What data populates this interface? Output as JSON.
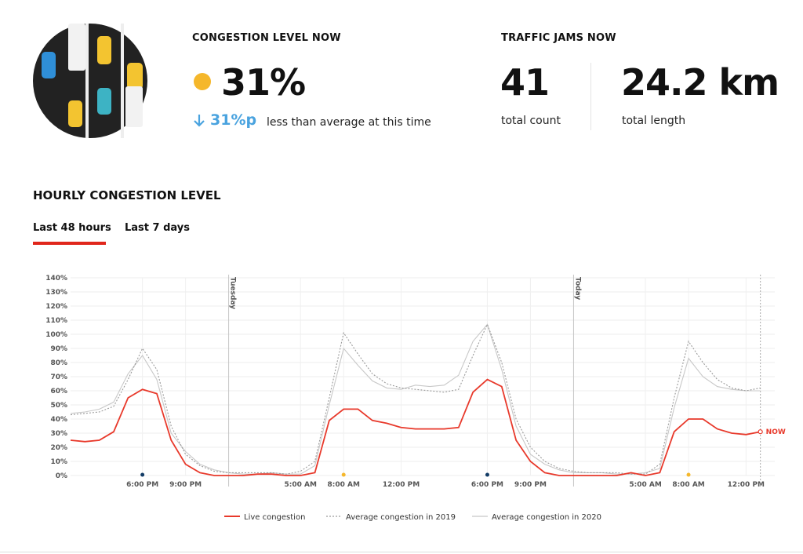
{
  "stats": {
    "congestion_title": "CONGESTION LEVEL NOW",
    "congestion_value": "31%",
    "congestion_delta": "31%p",
    "congestion_delta_text": "less than average at this time",
    "jams_title": "TRAFFIC JAMS NOW",
    "jams_count": "41",
    "jams_count_label": "total count",
    "jams_length": "24.2 km",
    "jams_length_label": "total length"
  },
  "section_title": "HOURLY CONGESTION LEVEL",
  "tabs": [
    "Last 48 hours",
    "Last 7 days"
  ],
  "chart_data": {
    "type": "line",
    "x": [
      0,
      1,
      2,
      3,
      4,
      5,
      6,
      7,
      8,
      9,
      10,
      11,
      12,
      13,
      14,
      15,
      16,
      17,
      18,
      19,
      20,
      21,
      22,
      23,
      24,
      25,
      26,
      27,
      28,
      29,
      30,
      31,
      32,
      33,
      34,
      35,
      36,
      37,
      38,
      39,
      40,
      41,
      42,
      43,
      44,
      45,
      46,
      47,
      48
    ],
    "xlim": [
      0,
      49
    ],
    "xticks": [
      {
        "value": 5,
        "label": "6:00 PM"
      },
      {
        "value": 8,
        "label": "9:00 PM"
      },
      {
        "value": 16,
        "label": "5:00 AM"
      },
      {
        "value": 19,
        "label": "8:00 AM"
      },
      {
        "value": 23,
        "label": "12:00 PM"
      },
      {
        "value": 29,
        "label": "6:00 PM"
      },
      {
        "value": 32,
        "label": "9:00 PM"
      },
      {
        "value": 40,
        "label": "5:00 AM"
      },
      {
        "value": 43,
        "label": "8:00 AM"
      },
      {
        "value": 47,
        "label": "12:00 PM"
      }
    ],
    "ylim": [
      0,
      140
    ],
    "yticks": [
      {
        "value": 0,
        "label": "0%"
      },
      {
        "value": 10,
        "label": "10%"
      },
      {
        "value": 20,
        "label": "20%"
      },
      {
        "value": 30,
        "label": "30%"
      },
      {
        "value": 40,
        "label": "40%"
      },
      {
        "value": 50,
        "label": "50%"
      },
      {
        "value": 60,
        "label": "60%"
      },
      {
        "value": 70,
        "label": "70%"
      },
      {
        "value": 80,
        "label": "80%"
      },
      {
        "value": 90,
        "label": "90%"
      },
      {
        "value": 100,
        "label": "100%"
      },
      {
        "value": 110,
        "label": "110%"
      },
      {
        "value": 120,
        "label": "120%"
      },
      {
        "value": 130,
        "label": "130%"
      },
      {
        "value": 140,
        "label": "140%"
      }
    ],
    "grid": true,
    "series": [
      {
        "name": "Live congestion",
        "color": "#e8392b",
        "style": "solid",
        "values": [
          25,
          24,
          25,
          31,
          55,
          61,
          58,
          25,
          8,
          2,
          0,
          0,
          0,
          1,
          1,
          0,
          0,
          2,
          39,
          47,
          47,
          39,
          37,
          34,
          33,
          33,
          33,
          34,
          59,
          68,
          63,
          25,
          10,
          2,
          0,
          0,
          0,
          0,
          0,
          2,
          0,
          2,
          31,
          40,
          40,
          33,
          30,
          29,
          31
        ]
      },
      {
        "name": "Average congestion in 2019",
        "color": "#9a9a9a",
        "style": "dotted",
        "values": [
          43,
          44,
          45,
          49,
          68,
          90,
          75,
          35,
          15,
          7,
          3,
          2,
          2,
          2,
          2,
          1,
          3,
          10,
          55,
          101,
          86,
          72,
          65,
          62,
          61,
          60,
          59,
          61,
          85,
          107,
          80,
          40,
          20,
          10,
          5,
          3,
          2,
          2,
          2,
          1,
          1,
          8,
          55,
          95,
          80,
          68,
          62,
          60,
          62
        ]
      },
      {
        "name": "Average congestion in 2020",
        "color": "#c8c8c8",
        "style": "solid",
        "values": [
          44,
          45,
          47,
          52,
          72,
          85,
          68,
          30,
          17,
          8,
          4,
          2,
          1,
          1,
          2,
          1,
          1,
          7,
          50,
          90,
          78,
          67,
          62,
          61,
          64,
          63,
          64,
          71,
          95,
          107,
          75,
          35,
          15,
          8,
          4,
          2,
          2,
          2,
          1,
          1,
          2,
          5,
          48,
          83,
          70,
          63,
          61,
          60,
          60
        ]
      }
    ],
    "annotations": [
      {
        "x": 11,
        "text": "Tuesday"
      },
      {
        "x": 35,
        "text": "Today"
      }
    ],
    "now": {
      "x": 48,
      "text": "NOW"
    },
    "markers": [
      {
        "x": 5,
        "color": "#123c66"
      },
      {
        "x": 19,
        "color": "#f5b72b"
      },
      {
        "x": 29,
        "color": "#123c66"
      },
      {
        "x": 43,
        "color": "#f5b72b"
      }
    ]
  }
}
